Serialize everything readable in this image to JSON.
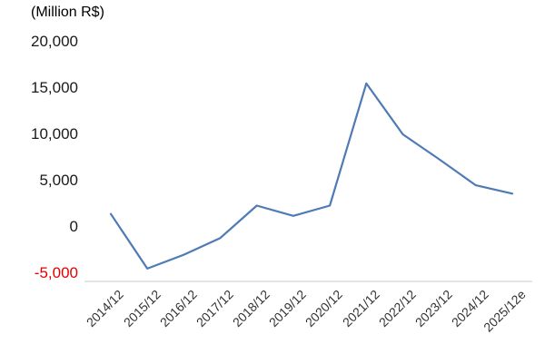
{
  "chart_data": {
    "type": "line",
    "title": "(Million R$)",
    "categories": [
      "2014/12",
      "2015/12",
      "2016/12",
      "2017/12",
      "2018/12",
      "2019/12",
      "2020/12",
      "2021/12",
      "2022/12",
      "2023/12",
      "2024/12",
      "2025/12e"
    ],
    "values": [
      1400,
      -4500,
      -3000,
      -1200,
      2300,
      1200,
      2300,
      15500,
      10000,
      7300,
      4500,
      3600
    ],
    "ylim": [
      -5000,
      20000
    ],
    "yticks": [
      20000,
      15000,
      10000,
      5000,
      0,
      -5000
    ],
    "ytick_labels": [
      "20,000",
      "15,000",
      "10,000",
      "5,000",
      "0",
      "-5,000"
    ],
    "xlabel": "",
    "ylabel": "",
    "grid": false,
    "legend": false,
    "line_color": "#4e7ab5",
    "negative_tick_color": "#e60000",
    "axis_color": "#c9c9c9"
  }
}
